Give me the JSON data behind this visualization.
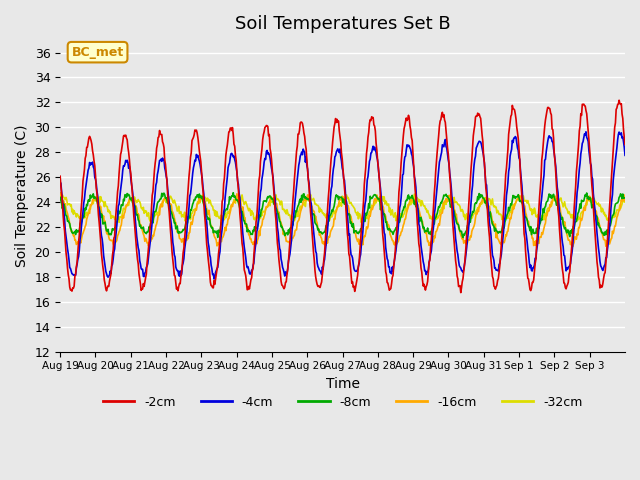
{
  "title": "Soil Temperatures Set B",
  "xlabel": "Time",
  "ylabel": "Soil Temperature (C)",
  "ylim": [
    12,
    37
  ],
  "yticks": [
    12,
    14,
    16,
    18,
    20,
    22,
    24,
    26,
    28,
    30,
    32,
    34,
    36
  ],
  "colors": {
    "-2cm": "#dd0000",
    "-4cm": "#0000dd",
    "-8cm": "#00aa00",
    "-16cm": "#ffaa00",
    "-32cm": "#dddd00"
  },
  "annotation_label": "BC_met",
  "annotation_color": "#cc8800",
  "background_color": "#e8e8e8",
  "plot_bg_color": "#e8e8e8",
  "grid_color": "#ffffff",
  "n_days": 16,
  "points_per_day": 48,
  "tick_labels": [
    "Aug 19",
    "Aug 20",
    "Aug 21",
    "Aug 22",
    "Aug 23",
    "Aug 24",
    "Aug 25",
    "Aug 26",
    "Aug 27",
    "Aug 28",
    "Aug 29",
    "Aug 30",
    "Aug 31",
    "Sep 1",
    "Sep 2",
    "Sep 3"
  ],
  "depths": [
    "-2cm",
    "-4cm",
    "-8cm",
    "-16cm",
    "-32cm"
  ]
}
